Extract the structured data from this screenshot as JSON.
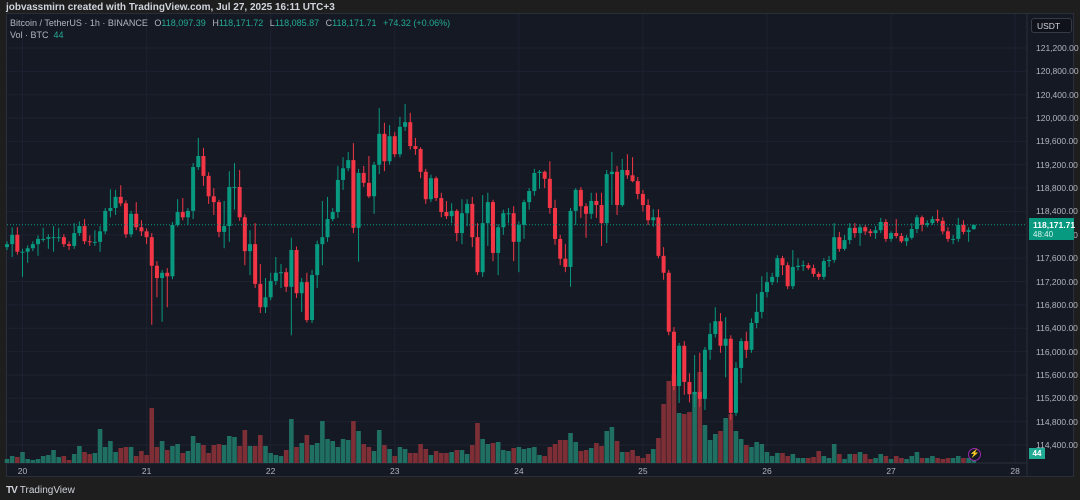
{
  "header": {
    "attribution": "jobvassmirn created with TradingView.com, Jul 27, 2025 16:11 UTC+3"
  },
  "legend": {
    "symbol": "Bitcoin / TetherUS · 1h · BINANCE",
    "o_label": "O",
    "open": "118,097.39",
    "h_label": "H",
    "high": "118,171.72",
    "l_label": "L",
    "low": "118,085.87",
    "c_label": "C",
    "close": "118,171.71",
    "change": "+74.32 (+0.06%)",
    "vol_label": "Vol · BTC",
    "vol_value": "44"
  },
  "price_scale": {
    "currency": "USDT",
    "last_price": "118,171.71",
    "countdown": "48:40",
    "volume_badge": "44"
  },
  "footer": {
    "brand": "TradingView",
    "logo_text": "TV"
  },
  "colors": {
    "up": "#089981",
    "down": "#f23645",
    "vol_up": "#1f6f63",
    "vol_down": "#7e2f36",
    "background": "#151924",
    "grid": "#1e2230"
  },
  "chart_data": {
    "type": "candlestick",
    "title": "Bitcoin / TetherUS · 1h · BINANCE",
    "interval": "1h",
    "ylim": [
      114400,
      121200
    ],
    "y_ticks": [
      "121,200.00",
      "120,800.00",
      "120,400.00",
      "120,000.00",
      "119,600.00",
      "119,200.00",
      "118,800.00",
      "118,400.00",
      "118,000.00",
      "117,600.00",
      "117,200.00",
      "116,800.00",
      "116,400.00",
      "116,000.00",
      "115,600.00",
      "115,200.00",
      "114,800.00",
      "114,400.00"
    ],
    "x_labels": [
      "20",
      "21",
      "22",
      "23",
      "24",
      "25",
      "26",
      "27",
      "28"
    ],
    "x_first_label_candle_index": 3,
    "candles_per_label": 24,
    "open": [
      117790,
      117840,
      118000,
      117710,
      117710,
      117770,
      117840,
      117930,
      117930,
      117960,
      117960,
      117960,
      117840,
      117810,
      118030,
      118150,
      117890,
      117880,
      117880,
      118060,
      118410,
      118460,
      118650,
      118540,
      118010,
      118360,
      118130,
      118060,
      117960,
      117470,
      117260,
      117350,
      117290,
      118170,
      118390,
      118300,
      118410,
      119160,
      119350,
      119010,
      118660,
      118560,
      118050,
      118150,
      118820,
      118820,
      118300,
      117720,
      117840,
      117160,
      116760,
      116930,
      117210,
      117350,
      117360,
      117110,
      117740,
      117000,
      117190,
      116540,
      117310,
      117840,
      117960,
      118270,
      118390,
      118940,
      119140,
      119280,
      118120,
      119060,
      118890,
      118660,
      119200,
      119730,
      119260,
      119690,
      119380,
      119850,
      119930,
      119520,
      119470,
      119080,
      118610,
      118970,
      118630,
      118390,
      118320,
      118410,
      118030,
      118370,
      118530,
      117960,
      117360,
      118200,
      118560,
      117690,
      118130,
      118370,
      118370,
      117880,
      118170,
      118560,
      118750,
      119060,
      119080,
      118960,
      118460,
      117930,
      117590,
      117450,
      118410,
      118770,
      118490,
      118360,
      118580,
      118510,
      118200,
      119040,
      119080,
      118510,
      119110,
      119020,
      118920,
      118700,
      118510,
      118250,
      118300,
      117640,
      117350,
      116340,
      115410,
      116100,
      115480,
      115270,
      115310,
      115190,
      116030,
      116300,
      116520,
      116100,
      116220,
      114950,
      115720,
      116180,
      116030,
      116490,
      116680,
      117020,
      117190,
      117280,
      117600,
      117480,
      117120,
      117450,
      117470,
      117480,
      117430,
      117330,
      117280,
      117550,
      117570,
      117960,
      117760,
      117910,
      118120,
      118030,
      118130,
      118060,
      118030,
      118080,
      118220,
      117930,
      118030,
      117980,
      117890,
      117950,
      118100,
      118300,
      118170,
      118200,
      118270,
      118240,
      118060,
      117930,
      117930,
      118170,
      118050,
      118097.39
    ],
    "high": [
      117890,
      118130,
      118130,
      117760,
      117820,
      117890,
      117990,
      118120,
      118010,
      118150,
      118120,
      118010,
      117890,
      118200,
      118230,
      118270,
      117990,
      118080,
      118150,
      118460,
      118780,
      118770,
      118850,
      118590,
      118410,
      118560,
      118250,
      118110,
      118030,
      117550,
      117400,
      117430,
      118220,
      118610,
      118630,
      118460,
      119230,
      119660,
      119490,
      119070,
      118800,
      118600,
      118580,
      119090,
      119230,
      119110,
      118350,
      118080,
      118200,
      117500,
      117260,
      117350,
      117620,
      117500,
      117430,
      117950,
      117800,
      117260,
      117350,
      117400,
      117900,
      118580,
      118650,
      118460,
      119180,
      119330,
      119420,
      119570,
      119130,
      119180,
      119350,
      119250,
      120170,
      119920,
      119880,
      119760,
      120020,
      120240,
      120090,
      119660,
      119500,
      119130,
      119030,
      119000,
      118720,
      118580,
      118540,
      118440,
      118610,
      118610,
      118650,
      118200,
      118680,
      118720,
      118600,
      118180,
      118430,
      118460,
      118490,
      118230,
      118600,
      118800,
      119130,
      119110,
      119100,
      119260,
      118600,
      118000,
      117840,
      118460,
      118800,
      118820,
      118540,
      118720,
      118720,
      118720,
      119110,
      119420,
      119180,
      119300,
      119380,
      119330,
      118990,
      118770,
      118610,
      118440,
      118440,
      117790,
      117400,
      116420,
      116150,
      116180,
      115630,
      115940,
      115980,
      116080,
      116490,
      116760,
      116660,
      116590,
      116280,
      115820,
      116230,
      116340,
      116570,
      116990,
      117290,
      117360,
      117350,
      117650,
      117640,
      117530,
      117740,
      117600,
      117560,
      117520,
      117490,
      117370,
      117600,
      117640,
      118200,
      118050,
      118000,
      118200,
      118200,
      118180,
      118170,
      118100,
      118150,
      118290,
      118270,
      118060,
      118270,
      118030,
      118000,
      118200,
      118340,
      118330,
      118250,
      118320,
      118430,
      118300,
      118130,
      118000,
      118290,
      118250,
      118130,
      118171.72
    ],
    "low": [
      117740,
      117620,
      117660,
      117280,
      117520,
      117720,
      117640,
      117880,
      117760,
      117710,
      117880,
      117790,
      117740,
      117760,
      117980,
      117840,
      117810,
      117810,
      117710,
      118010,
      118300,
      118340,
      118490,
      117950,
      117960,
      118080,
      117980,
      117840,
      116460,
      116930,
      116510,
      116760,
      117240,
      118140,
      118250,
      118170,
      118270,
      119110,
      118840,
      118530,
      118340,
      117960,
      117770,
      117880,
      118430,
      118240,
      117480,
      117310,
      117090,
      116660,
      116660,
      116880,
      117140,
      117090,
      117020,
      116280,
      116920,
      116680,
      116500,
      116490,
      117090,
      117480,
      117880,
      118230,
      118290,
      118770,
      119090,
      118030,
      117540,
      118820,
      118630,
      118360,
      119040,
      119090,
      119200,
      119330,
      119330,
      119780,
      119460,
      119370,
      118970,
      118530,
      118560,
      118580,
      118300,
      118270,
      118200,
      117890,
      117840,
      118150,
      117790,
      117310,
      117280,
      117810,
      117550,
      117310,
      118000,
      118200,
      117550,
      117360,
      117930,
      118430,
      118670,
      118790,
      118800,
      118360,
      117830,
      117480,
      117360,
      117110,
      118170,
      118290,
      117950,
      118270,
      118290,
      117810,
      117860,
      118510,
      118340,
      118480,
      118960,
      118900,
      118610,
      118400,
      118170,
      118140,
      117600,
      117230,
      116280,
      115340,
      115120,
      115260,
      115130,
      115050,
      115050,
      115000,
      115860,
      116240,
      115980,
      115560,
      114830,
      114900,
      115460,
      115890,
      115980,
      116400,
      116570,
      116930,
      117140,
      117180,
      117310,
      117070,
      117070,
      117390,
      117380,
      117400,
      117280,
      117230,
      117230,
      117450,
      117520,
      117710,
      117730,
      117840,
      117950,
      117810,
      118000,
      117970,
      117930,
      118030,
      117880,
      117880,
      117940,
      117860,
      117810,
      117920,
      118030,
      118060,
      118130,
      118170,
      118200,
      118010,
      117880,
      117840,
      117880,
      118010,
      117880,
      118085.87
    ],
    "close": [
      117840,
      118000,
      117710,
      117710,
      117770,
      117840,
      117930,
      117930,
      117960,
      117960,
      117960,
      117840,
      117810,
      118030,
      118150,
      117890,
      117880,
      117880,
      118060,
      118410,
      118460,
      118650,
      118540,
      118010,
      118360,
      118130,
      118060,
      117960,
      117470,
      117260,
      117350,
      117290,
      118170,
      118390,
      118300,
      118410,
      119160,
      119350,
      119010,
      118660,
      118560,
      118050,
      118150,
      118820,
      118820,
      118300,
      117720,
      117840,
      117160,
      116760,
      116930,
      117210,
      117350,
      117360,
      117110,
      117740,
      117000,
      117190,
      116540,
      117310,
      117840,
      117960,
      118270,
      118390,
      118940,
      119140,
      119280,
      118120,
      119060,
      118890,
      118660,
      119200,
      119730,
      119260,
      119690,
      119380,
      119850,
      119930,
      119520,
      119470,
      119080,
      118610,
      118970,
      118630,
      118390,
      118320,
      118410,
      118030,
      118370,
      118530,
      117960,
      117360,
      118200,
      118560,
      117690,
      118130,
      118370,
      118370,
      117880,
      118170,
      118560,
      118750,
      119060,
      119080,
      118960,
      118460,
      117930,
      117590,
      117450,
      118410,
      118770,
      118490,
      118360,
      118580,
      118510,
      118200,
      119040,
      119080,
      118510,
      119110,
      119020,
      118920,
      118700,
      118510,
      118250,
      118300,
      117640,
      117350,
      116340,
      115410,
      116100,
      115480,
      115270,
      115310,
      115190,
      116030,
      116300,
      116520,
      116100,
      116220,
      114950,
      115720,
      116180,
      116030,
      116490,
      116680,
      117020,
      117190,
      117280,
      117600,
      117480,
      117120,
      117450,
      117470,
      117480,
      117430,
      117330,
      117280,
      117550,
      117570,
      117960,
      117760,
      117910,
      118120,
      118030,
      118130,
      118060,
      118030,
      118080,
      118220,
      117930,
      118030,
      117980,
      117890,
      117950,
      118100,
      118300,
      118170,
      118200,
      118270,
      118240,
      118060,
      117930,
      117930,
      118170,
      118050,
      118080,
      118171.71
    ],
    "volume": [
      60,
      105,
      90,
      165,
      60,
      45,
      60,
      105,
      120,
      195,
      90,
      105,
      45,
      135,
      255,
      165,
      135,
      150,
      510,
      240,
      330,
      165,
      225,
      240,
      240,
      105,
      180,
      120,
      825,
      240,
      330,
      195,
      255,
      285,
      150,
      180,
      405,
      300,
      270,
      150,
      270,
      285,
      270,
      405,
      390,
      255,
      495,
      255,
      255,
      420,
      255,
      150,
      120,
      105,
      195,
      660,
      240,
      300,
      420,
      270,
      300,
      630,
      360,
      330,
      240,
      360,
      345,
      630,
      480,
      285,
      240,
      180,
      495,
      270,
      210,
      105,
      240,
      210,
      150,
      150,
      285,
      210,
      120,
      180,
      150,
      150,
      165,
      195,
      195,
      135,
      270,
      600,
      360,
      285,
      300,
      315,
      195,
      180,
      225,
      240,
      210,
      225,
      240,
      120,
      105,
      240,
      285,
      345,
      345,
      450,
      315,
      180,
      195,
      225,
      300,
      255,
      480,
      540,
      330,
      165,
      165,
      195,
      105,
      75,
      135,
      210,
      375,
      885,
      1230,
      1320,
      750,
      735,
      765,
      1065,
      1365,
      570,
      345,
      435,
      480,
      675,
      735,
      480,
      360,
      270,
      240,
      315,
      285,
      165,
      105,
      150,
      150,
      105,
      135,
      75,
      75,
      75,
      90,
      180,
      105,
      75,
      285,
      135,
      60,
      135,
      135,
      165,
      135,
      60,
      75,
      135,
      105,
      60,
      105,
      75,
      60,
      105,
      165,
      75,
      75,
      105,
      75,
      60,
      75,
      75,
      105,
      75,
      75,
      44
    ]
  }
}
